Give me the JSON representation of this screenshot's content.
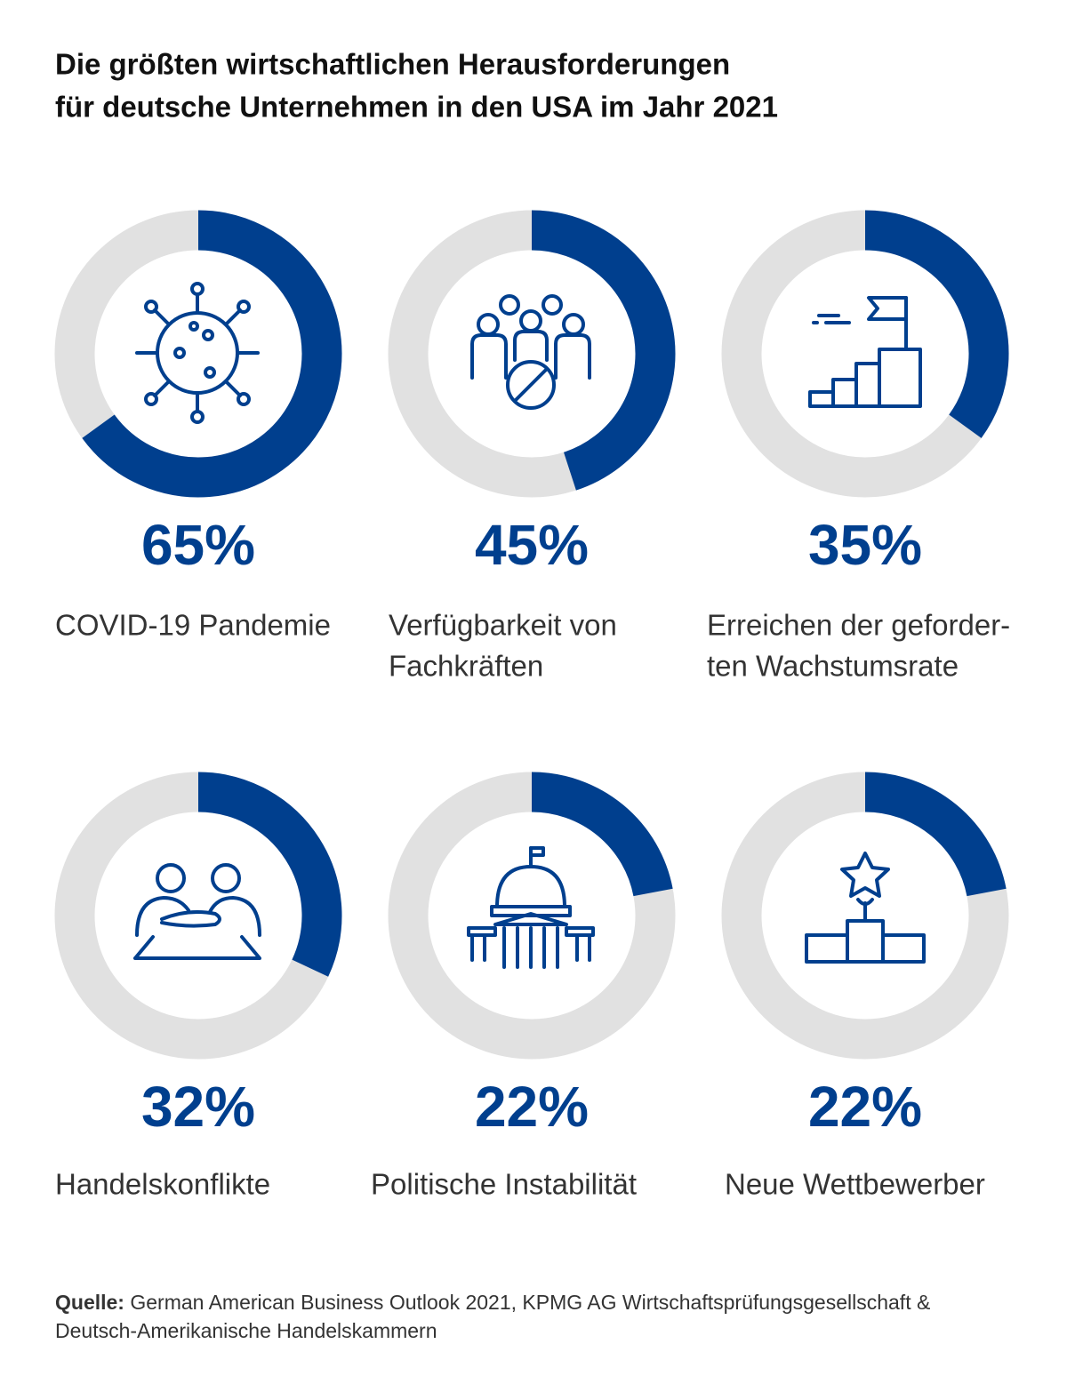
{
  "header": {
    "title_lines": [
      "Die größten wirtschaftlichen Herausforderungen",
      "für deutsche Unternehmen in den USA im Jahr 2021"
    ]
  },
  "chart_data": [
    {
      "type": "donut",
      "values": [
        65
      ],
      "value_labels": [
        "65%"
      ],
      "label_lines": [
        "COVID-19 Pandemie"
      ],
      "ylim": [
        0,
        100
      ],
      "color": "#003f8e",
      "track_color": "#e1e1e1"
    },
    {
      "type": "donut",
      "values": [
        45
      ],
      "value_labels": [
        "45%"
      ],
      "label_lines": [
        "Verfügbarkeit von",
        "Fachkräften"
      ],
      "ylim": [
        0,
        100
      ],
      "color": "#003f8e",
      "track_color": "#e1e1e1"
    },
    {
      "type": "donut",
      "values": [
        35
      ],
      "value_labels": [
        "35%"
      ],
      "label_lines": [
        "Erreichen der geforder-",
        "ten Wachstumsrate"
      ],
      "ylim": [
        0,
        100
      ],
      "color": "#003f8e",
      "track_color": "#e1e1e1"
    },
    {
      "type": "donut",
      "values": [
        32
      ],
      "value_labels": [
        "32%"
      ],
      "label_lines": [
        "Handelskonflikte"
      ],
      "ylim": [
        0,
        100
      ],
      "color": "#003f8e",
      "track_color": "#e1e1e1"
    },
    {
      "type": "donut",
      "values": [
        22
      ],
      "value_labels": [
        "22%"
      ],
      "label_lines": [
        "Politische Instabilität"
      ],
      "ylim": [
        0,
        100
      ],
      "color": "#003f8e",
      "track_color": "#e1e1e1"
    },
    {
      "type": "donut",
      "values": [
        22
      ],
      "value_labels": [
        "22%"
      ],
      "label_lines": [
        "Neue Wettbewerber"
      ],
      "ylim": [
        0,
        100
      ],
      "color": "#003f8e",
      "track_color": "#e1e1e1"
    }
  ],
  "source": {
    "label": "Quelle:",
    "lines": [
      "German American Business Outlook 2021, KPMG AG Wirtschaftsprüfungsgesellschaft &",
      "Deutsch-Amerikanische Handelskammern"
    ]
  }
}
